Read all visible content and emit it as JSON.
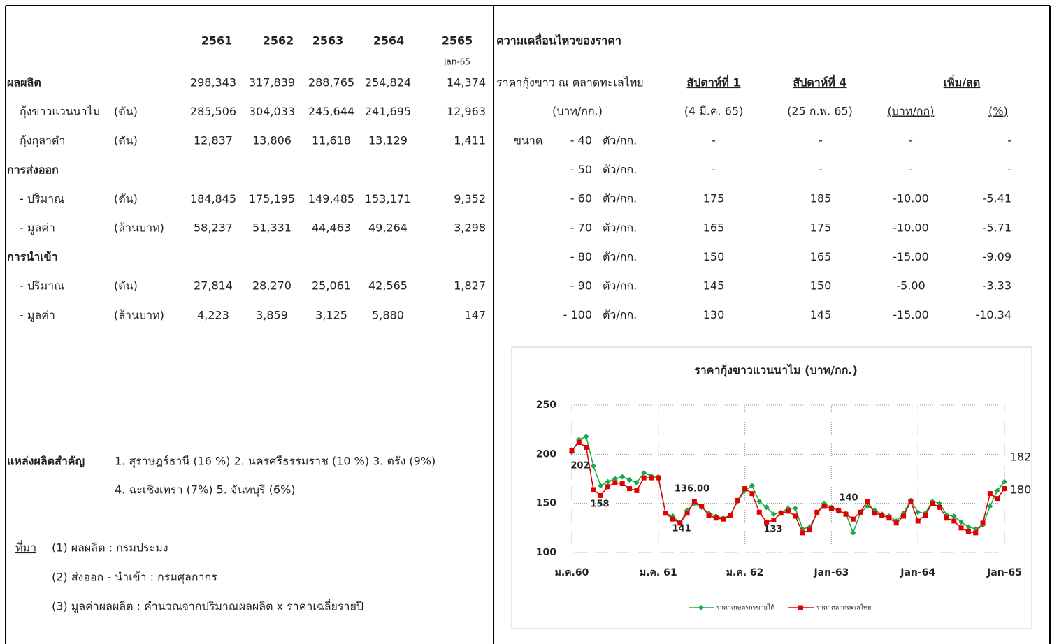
{
  "production_table": {
    "years": [
      "2561",
      "2562",
      "2563",
      "2564",
      "2565"
    ],
    "year_note": "Jan-65",
    "rows": [
      {
        "label": "ผลผลิต",
        "values": [
          "298,343",
          "317,839",
          "288,765",
          "254,824",
          "14,374"
        ]
      },
      {
        "label": "กุ้งขาวแวนนาไม",
        "unit": "(ตัน)",
        "values": [
          "285,506",
          "304,033",
          "245,644",
          "241,695",
          "12,963"
        ]
      },
      {
        "label": "กุ้งกุลาดำ",
        "unit": "(ตัน)",
        "values": [
          "12,837",
          "13,806",
          "11,618",
          "13,129",
          "1,411"
        ]
      },
      {
        "label": "การส่งออก"
      },
      {
        "label": "- ปริมาณ",
        "unit": "(ตัน)",
        "values": [
          "184,845",
          "175,195",
          "149,485",
          "153,171",
          "9,352"
        ]
      },
      {
        "label": "- มูลค่า",
        "unit": "(ล้านบาท)",
        "values": [
          "58,237",
          "51,331",
          "44,463",
          "49,264",
          "3,298"
        ]
      },
      {
        "label": "การนำเข้า"
      },
      {
        "label": "- ปริมาณ",
        "unit": "(ตัน)",
        "values": [
          "27,814",
          "28,270",
          "25,061",
          "42,565",
          "1,827"
        ]
      },
      {
        "label": "- มูลค่า",
        "unit": "(ล้านบาท)",
        "values": [
          "4,223",
          "3,859",
          "3,125",
          "5,880",
          "147"
        ]
      }
    ]
  },
  "sources": {
    "label": "แหล่งผลิตสำคัญ",
    "lines": [
      "1. สุราษฎร์ธานี (16 %)   2. นครศรีธรรมราช (10 %)   3. ตรัง (9%)",
      "4. ฉะเชิงเทรา (7%)  5. จันทบุรี (6%)"
    ]
  },
  "references": {
    "label": "ที่มา",
    "lines": [
      "(1) ผลผลิต : กรมประมง",
      "(2) ส่งออก - นำเข้า : กรมศุลกากร",
      "(3) มูลค่าผลผลิต  : คำนวณจากปริมาณผลผลิต x ราคาเฉลี่ยรายปี"
    ]
  },
  "price_table": {
    "title": "ความเคลื่อนไหวของราคา",
    "header": {
      "market": "ราคากุ้งขาว ณ ตลาดทะเลไทย",
      "week1": "สัปดาห์ที่ 1",
      "week4": "สัปดาห์ที่ 4",
      "change": "เพิ่ม/ลด"
    },
    "subheader": {
      "unit": "(บาท/กก.)",
      "week1_date": "(4 มี.ค. 65)",
      "week4_date": "(25 ก.พ. 65)",
      "change_unit": "(บาท/กก)",
      "change_pct": "(%)"
    },
    "size_label": "ขนาด",
    "highlight_color": "#e53935",
    "rows": [
      {
        "size": "- 40",
        "unit": "ตัว/กก.",
        "week1": "-",
        "week4": "-",
        "diff": "-",
        "pct": "-"
      },
      {
        "size": "- 50",
        "unit": "ตัว/กก.",
        "week1": "-",
        "week4": "-",
        "diff": "-",
        "pct": "-"
      },
      {
        "size": "- 60",
        "unit": "ตัว/กก.",
        "week1": "175",
        "week4": "185",
        "diff": "-10.00",
        "pct": "-5.41"
      },
      {
        "size": "- 70",
        "unit": "ตัว/กก.",
        "week1": "165",
        "week4": "175",
        "diff": "-10.00",
        "pct": "-5.71"
      },
      {
        "size": "- 80",
        "unit": "ตัว/กก.",
        "week1": "150",
        "week4": "165",
        "diff": "-15.00",
        "pct": "-9.09"
      },
      {
        "size": "- 90",
        "unit": "ตัว/กก.",
        "week1": "145",
        "week4": "150",
        "diff": "-5.00",
        "pct": "-3.33"
      },
      {
        "size": "- 100",
        "unit": "ตัว/กก.",
        "week1": "130",
        "week4": "145",
        "diff": "-15.00",
        "pct": "-10.34"
      }
    ]
  },
  "chart_data": {
    "type": "line",
    "title": "ราคากุ้งขาวแวนนาไม (บาท/กก.)",
    "categories": [
      "ม.ค.60",
      null,
      null,
      null,
      null,
      null,
      null,
      null,
      null,
      null,
      null,
      null,
      "ม.ค. 61",
      null,
      null,
      null,
      null,
      null,
      null,
      null,
      null,
      null,
      null,
      null,
      "ม.ค. 62",
      null,
      null,
      null,
      null,
      null,
      null,
      null,
      null,
      null,
      null,
      null,
      "Jan-63",
      null,
      null,
      null,
      null,
      null,
      null,
      null,
      null,
      null,
      null,
      null,
      "Jan-64",
      null,
      null,
      null,
      null,
      null,
      null,
      null,
      null,
      null,
      null,
      null,
      "Jan-65"
    ],
    "series": [
      {
        "name": "ราคาเกษตรกรขายได้",
        "color": "#1aa84a",
        "marker": "diamond",
        "values": [
          202,
          215,
          218,
          188,
          168,
          172,
          175,
          177,
          174,
          171,
          181,
          178,
          177,
          140,
          137,
          130,
          143,
          150,
          146,
          140,
          137,
          135,
          138,
          152,
          163,
          168,
          152,
          146,
          139,
          141,
          145,
          145,
          124,
          126,
          140,
          150,
          146,
          142,
          140,
          120,
          140,
          147,
          143,
          139,
          137,
          132,
          140,
          153,
          141,
          140,
          152,
          150,
          138,
          137,
          131,
          126,
          124,
          128,
          147,
          163,
          172
        ]
      },
      {
        "name": "ราคาตลาดทะเลไทย",
        "color": "#e00000",
        "marker": "square",
        "values": [
          204,
          212,
          207,
          164,
          158,
          167,
          171,
          170,
          165,
          163,
          176,
          176,
          176,
          140,
          134,
          130,
          140,
          152,
          147,
          138,
          135,
          134,
          138,
          153,
          165,
          160,
          141,
          131,
          133,
          140,
          142,
          137,
          120,
          123,
          141,
          147,
          145,
          143,
          139,
          134,
          141,
          152,
          140,
          138,
          135,
          130,
          137,
          152,
          132,
          138,
          150,
          146,
          135,
          132,
          125,
          121,
          120,
          130,
          160,
          155,
          165
        ]
      }
    ],
    "annotations": [
      {
        "text": "202",
        "color": "#1aa84a"
      },
      {
        "text": "158",
        "color": "#e00000"
      },
      {
        "text": "136.00",
        "color": "#1aa84a"
      },
      {
        "text": "141",
        "color": "#e00000"
      },
      {
        "text": "133",
        "color": "#e00000"
      },
      {
        "text": "140",
        "color": "#1aa84a"
      },
      {
        "text": "182",
        "color": "#1aa84a"
      },
      {
        "text": "180",
        "color": "#e00000"
      }
    ],
    "ylim": [
      100,
      250
    ],
    "yticks": [
      100,
      150,
      200,
      250
    ],
    "grid": true,
    "legend": "bottom"
  }
}
